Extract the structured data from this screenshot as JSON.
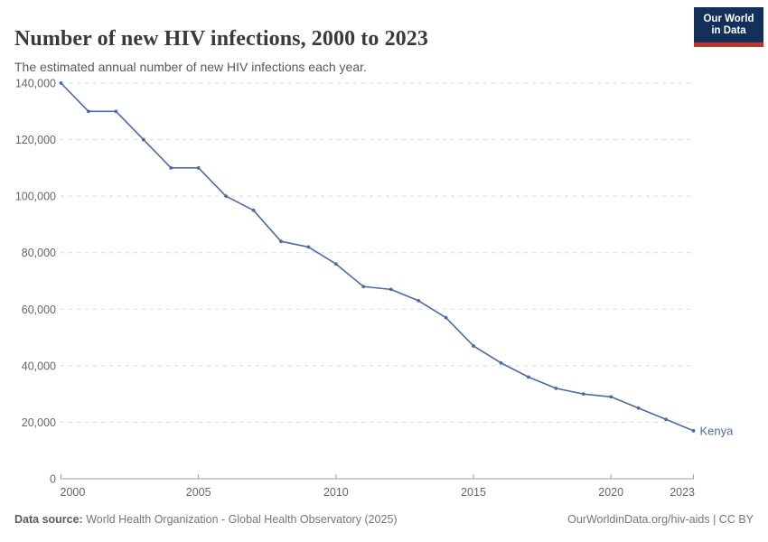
{
  "header": {
    "title": "Number of new HIV infections, 2000 to 2023",
    "subtitle": "The estimated annual number of new HIV infections each year.",
    "logo": {
      "line1": "Our World",
      "line2": "in Data"
    }
  },
  "chart_data": {
    "type": "line",
    "title": "Number of new HIV infections, 2000 to 2023",
    "x": [
      2000,
      2001,
      2002,
      2003,
      2004,
      2005,
      2006,
      2007,
      2008,
      2009,
      2010,
      2011,
      2012,
      2013,
      2014,
      2015,
      2016,
      2017,
      2018,
      2019,
      2020,
      2021,
      2022,
      2023
    ],
    "series": [
      {
        "name": "Kenya",
        "color": "#4c6ba3",
        "values": [
          140000,
          130000,
          130000,
          120000,
          110000,
          110000,
          100000,
          95000,
          84000,
          82000,
          76000,
          68000,
          67000,
          63000,
          57000,
          47000,
          41000,
          36000,
          32000,
          30000,
          29000,
          25000,
          21000,
          17000
        ]
      }
    ],
    "xlabel": "",
    "ylabel": "",
    "ylim": [
      0,
      140000
    ],
    "yticks": [
      0,
      20000,
      40000,
      60000,
      80000,
      100000,
      120000,
      140000
    ],
    "ytick_labels": [
      "0",
      "20,000",
      "40,000",
      "60,000",
      "80,000",
      "100,000",
      "120,000",
      "140,000"
    ],
    "xticks": [
      2000,
      2005,
      2010,
      2015,
      2020,
      2023
    ],
    "grid": "horizontal-dashed",
    "legend_position": "end-of-line-label",
    "end_label": "Kenya"
  },
  "footer": {
    "datasource_label": "Data source:",
    "datasource_text": " World Health Organization - Global Health Observatory (2025)",
    "attribution": "OurWorldinData.org/hiv-aids | CC BY"
  },
  "colors": {
    "line": "#4c6ba3",
    "grid": "#d9d9d9",
    "axis": "#9e9e9e",
    "tick_text": "#666666",
    "title_text": "#3a3a3a",
    "subtitle_text": "#5a5a5a",
    "footer_text": "#777777",
    "logo_bg": "#12305a",
    "logo_accent": "#c0352b"
  }
}
